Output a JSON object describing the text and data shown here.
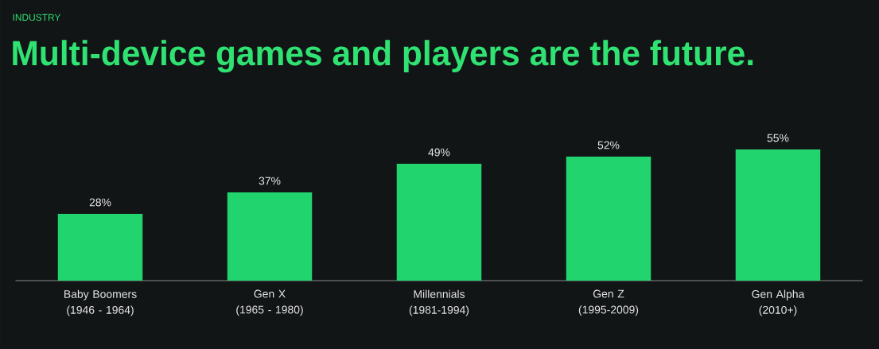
{
  "chart_data": {
    "type": "bar",
    "subtitle": "INDUSTRY",
    "title": "Multi-device games and players are the future.",
    "categories": [
      "Baby Boomers (1946 - 1964)",
      "Gen X (1965 - 1980)",
      "Millennials (1981-1994)",
      "Gen Z (1995-2009)",
      "Gen Alpha (2010+)"
    ],
    "values": [
      28,
      37,
      49,
      52,
      55
    ],
    "value_labels": [
      "28%",
      "37%",
      "49%",
      "52%",
      "55%"
    ],
    "color": "#22d46e"
  }
}
